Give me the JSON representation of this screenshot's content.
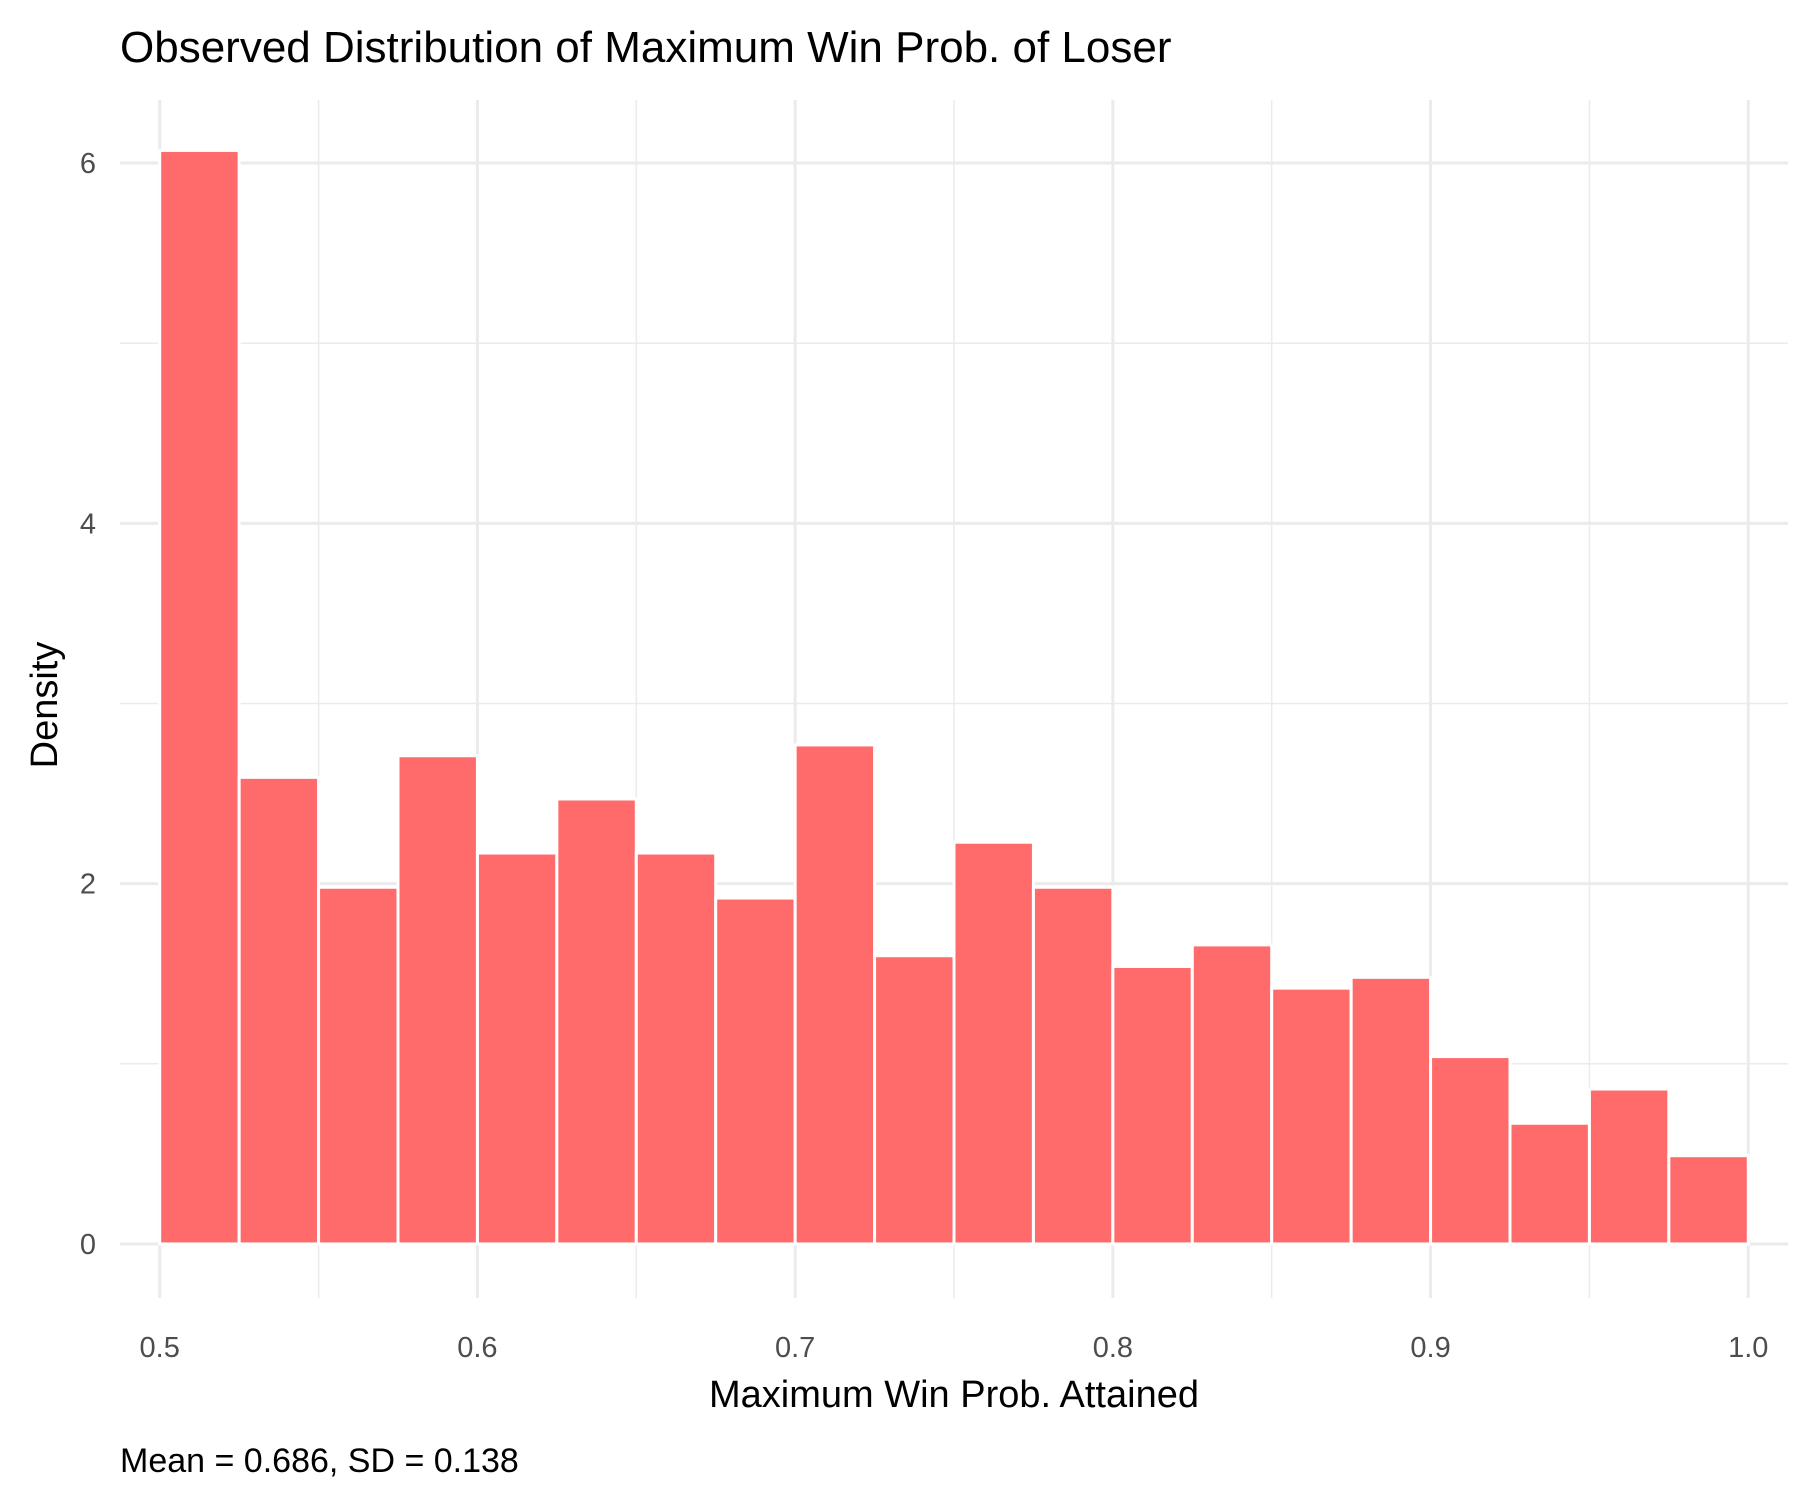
{
  "chart_data": {
    "type": "bar",
    "title": "Observed Distribution of Maximum Win Prob. of Loser",
    "xlabel": "Maximum Win Prob. Attained",
    "ylabel": "Density",
    "caption": "Mean = 0.686, SD = 0.138",
    "bin_width": 0.025,
    "bin_starts": [
      0.5,
      0.525,
      0.55,
      0.575,
      0.6,
      0.625,
      0.65,
      0.675,
      0.7,
      0.725,
      0.75,
      0.775,
      0.8,
      0.825,
      0.85,
      0.875,
      0.9,
      0.925,
      0.95,
      0.975
    ],
    "values": [
      6.07,
      2.59,
      1.98,
      2.71,
      2.17,
      2.47,
      2.17,
      1.92,
      2.77,
      1.6,
      2.23,
      1.98,
      1.54,
      1.66,
      1.42,
      1.48,
      1.04,
      0.67,
      0.86,
      0.49
    ],
    "xlim": [
      0.4875,
      1.0125
    ],
    "ylim": [
      -0.3,
      6.35
    ],
    "x_ticks": [
      "0.5",
      "0.6",
      "0.7",
      "0.8",
      "0.9",
      "1.0"
    ],
    "y_ticks": [
      "0",
      "2",
      "4",
      "6"
    ],
    "grid": true,
    "legend": "none",
    "colors": {
      "bar": "#ff6b6b",
      "bar_outline": "#ffffff",
      "grid": "#ebebeb"
    }
  }
}
